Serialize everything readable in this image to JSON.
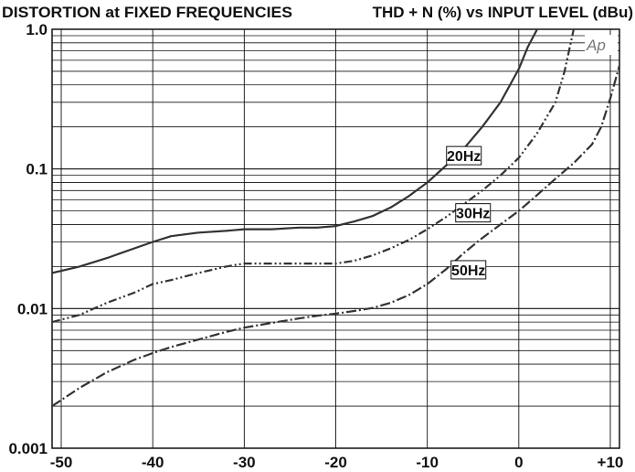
{
  "chart_data": {
    "type": "line",
    "title": "DISTORTION at FIXED FREQUENCIES",
    "subtitle": "THD + N (%) vs INPUT LEVEL (dBu)",
    "logo": "Ap",
    "xlim": [
      -51,
      11
    ],
    "ylim": [
      0.001,
      1.0
    ],
    "y_scale": "log",
    "grid": true,
    "x_ticks": [
      -50,
      -40,
      -30,
      -20,
      -10,
      0,
      10
    ],
    "x_tick_labels": [
      "-50",
      "-40",
      "-30",
      "-20",
      "-10",
      "0",
      "+10"
    ],
    "y_tick_values": [
      1.0,
      0.1,
      0.01,
      0.001
    ],
    "y_tick_labels": [
      "1.0",
      "0.1",
      "0.01",
      "0.001"
    ],
    "series": [
      {
        "name": "20Hz",
        "line_style": "solid",
        "x": [
          -51,
          -48,
          -45,
          -42,
          -40,
          -38,
          -35,
          -32,
          -30,
          -27,
          -24,
          -22,
          -20,
          -18,
          -16,
          -14,
          -12,
          -10,
          -8,
          -6,
          -4,
          -2,
          0,
          1,
          2,
          3
        ],
        "y": [
          0.018,
          0.02,
          0.023,
          0.027,
          0.03,
          0.033,
          0.035,
          0.036,
          0.037,
          0.037,
          0.038,
          0.038,
          0.039,
          0.042,
          0.046,
          0.053,
          0.064,
          0.08,
          0.105,
          0.14,
          0.2,
          0.3,
          0.52,
          0.75,
          1.0,
          1.3
        ]
      },
      {
        "name": "30Hz",
        "line_style": "dash-dot-dot",
        "x": [
          -51,
          -48,
          -45,
          -42,
          -40,
          -38,
          -35,
          -32,
          -30,
          -27,
          -24,
          -22,
          -20,
          -18,
          -16,
          -14,
          -12,
          -10,
          -8,
          -6,
          -4,
          -2,
          0,
          2,
          4,
          5,
          6
        ],
        "y": [
          0.008,
          0.009,
          0.011,
          0.013,
          0.015,
          0.016,
          0.018,
          0.02,
          0.021,
          0.021,
          0.021,
          0.021,
          0.021,
          0.022,
          0.024,
          0.027,
          0.031,
          0.037,
          0.045,
          0.056,
          0.07,
          0.09,
          0.12,
          0.18,
          0.3,
          0.5,
          1.0
        ]
      },
      {
        "name": "50Hz",
        "line_style": "dash-dot",
        "x": [
          -51,
          -48,
          -45,
          -42,
          -40,
          -38,
          -35,
          -32,
          -30,
          -27,
          -24,
          -22,
          -20,
          -18,
          -16,
          -14,
          -12,
          -10,
          -8,
          -6,
          -4,
          -2,
          0,
          2,
          4,
          6,
          8,
          9,
          10,
          11
        ],
        "y": [
          0.002,
          0.0027,
          0.0035,
          0.0043,
          0.0048,
          0.0053,
          0.006,
          0.0068,
          0.0073,
          0.0079,
          0.0085,
          0.0089,
          0.0092,
          0.0096,
          0.0101,
          0.011,
          0.0125,
          0.015,
          0.019,
          0.025,
          0.032,
          0.04,
          0.05,
          0.065,
          0.085,
          0.11,
          0.15,
          0.2,
          0.32,
          0.55
        ]
      }
    ]
  }
}
